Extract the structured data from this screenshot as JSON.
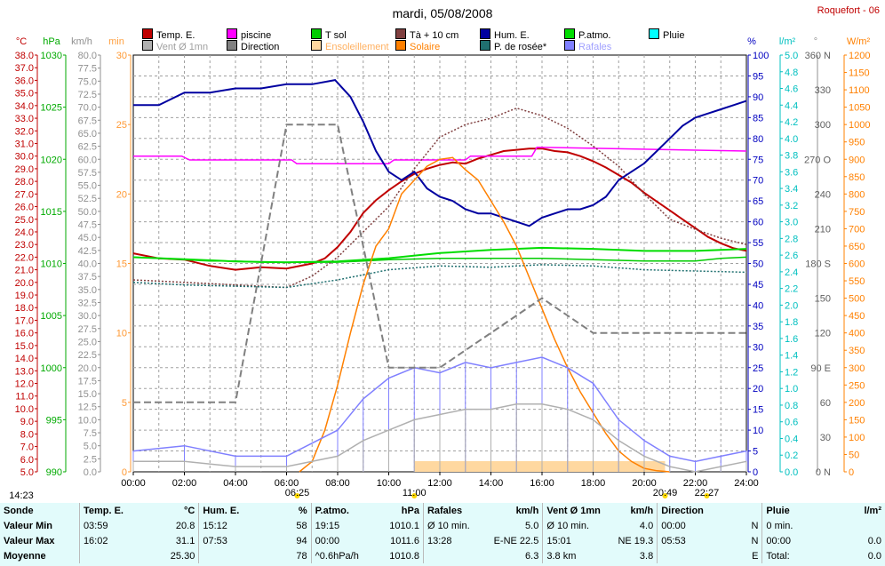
{
  "page": {
    "title": "mardi, 05/08/2008",
    "station": "Roquefort - 06"
  },
  "legend": [
    {
      "label": "Temp. E.",
      "color": "#c00000",
      "text_color": "#000000"
    },
    {
      "label": "piscine",
      "color": "#ff00ff",
      "text_color": "#000000"
    },
    {
      "label": "T sol",
      "color": "#00cc00",
      "text_color": "#000000"
    },
    {
      "label": "Tà + 10 cm",
      "color": "#804040",
      "text_color": "#000000"
    },
    {
      "label": "Hum. E.",
      "color": "#0000a0",
      "text_color": "#000000"
    },
    {
      "label": "P.atmo.",
      "color": "#00dd00",
      "text_color": "#000000"
    },
    {
      "label": "Pluie",
      "color": "#00ffff",
      "text_color": "#000000"
    },
    {
      "label": "Vent Ø 1mn",
      "color": "#b0b0b0",
      "text_color": "#a0a0a0"
    },
    {
      "label": "Direction",
      "color": "#808080",
      "text_color": "#000000"
    },
    {
      "label": "Ensoleillement",
      "color": "#ffd8a0",
      "text_color": "#ffb060"
    },
    {
      "label": "Solaire",
      "color": "#ff8000",
      "text_color": "#ff8000"
    },
    {
      "label": "P. de rosée*",
      "color": "#207070",
      "text_color": "#000000"
    },
    {
      "label": "Rafales",
      "color": "#8080ff",
      "text_color": "#a0a0ff"
    }
  ],
  "axis_units": {
    "temp": "°C",
    "press": "hPa",
    "wind": "km/h",
    "minutes": "min",
    "percent": "%",
    "rain": "l/m²",
    "direction": "°",
    "solar": "W/m²"
  },
  "sun_markers": {
    "dawn": "06:25",
    "sunrise": "11:00",
    "sunset": "20:49",
    "dusk": "22:27",
    "left": "14:23"
  },
  "chart_data": {
    "type": "line",
    "title": "mardi, 05/08/2008",
    "x_ticks": [
      "00:00",
      "02:00",
      "04:00",
      "06:00",
      "08:00",
      "10:00",
      "12:00",
      "14:00",
      "16:00",
      "18:00",
      "20:00",
      "22:00",
      "24:00"
    ],
    "xlim": [
      0,
      24
    ],
    "axes": {
      "temp_c": {
        "range": [
          5,
          38
        ],
        "step": 0.5,
        "label_step": 1,
        "color": "#c00000"
      },
      "pressure_hpa": {
        "range": [
          990,
          1030
        ],
        "ticks": [
          990,
          995,
          1000,
          1005,
          1010,
          1015,
          1020,
          1025,
          1030
        ],
        "color": "#00aa00"
      },
      "wind_kmh": {
        "range": [
          0,
          80
        ],
        "step": 2.5,
        "color": "#909090"
      },
      "sun_min": {
        "range": [
          0,
          30
        ],
        "ticks": [
          0,
          5,
          10,
          15,
          20,
          25,
          30
        ],
        "color": "#ff9933"
      },
      "humidity_pct": {
        "range": [
          0,
          100
        ],
        "step": 5,
        "color": "#0000c0"
      },
      "rain_lm2": {
        "range": [
          0,
          5
        ],
        "step": 0.2,
        "color": "#00c0c0"
      },
      "direction_deg": {
        "ticks": [
          0,
          30,
          60,
          90,
          120,
          150,
          180,
          210,
          240,
          270,
          300,
          330,
          360
        ],
        "compass": {
          "0": "N",
          "90": "E",
          "180": "S",
          "270": "O",
          "360": "N"
        },
        "color": "#909090"
      },
      "solar_wm2": {
        "range": [
          0,
          1200
        ],
        "step": 50,
        "color": "#ff8000"
      }
    },
    "series": [
      {
        "name": "Temp. E.",
        "axis": "temp_c",
        "color": "#c00000",
        "x": [
          0,
          1,
          2,
          3,
          4,
          5,
          6,
          7,
          7.5,
          8,
          8.5,
          9,
          9.5,
          10,
          10.5,
          11,
          11.5,
          12,
          12.5,
          13,
          13.5,
          14,
          14.5,
          15,
          15.5,
          16,
          16.5,
          17,
          17.5,
          18,
          18.5,
          19,
          19.5,
          20,
          20.5,
          21,
          21.5,
          22,
          22.5,
          23,
          23.5,
          24
        ],
        "y": [
          22.3,
          21.9,
          21.8,
          21.3,
          21.0,
          21.2,
          21.1,
          21.5,
          21.9,
          22.8,
          24.0,
          25.5,
          26.5,
          27.3,
          28.0,
          28.6,
          29.0,
          29.3,
          29.5,
          29.4,
          29.8,
          30.1,
          30.4,
          30.5,
          30.6,
          30.6,
          30.4,
          30.3,
          30.0,
          29.6,
          29.1,
          28.5,
          27.9,
          27.1,
          26.4,
          25.7,
          25.0,
          24.3,
          23.6,
          23.1,
          22.7,
          22.5
        ]
      },
      {
        "name": "piscine",
        "axis": "temp_c",
        "color": "#ff00ff",
        "x": [
          0,
          1.9,
          2.2,
          6.2,
          6.4,
          10,
          10.2,
          13,
          13.2,
          15.6,
          15.8,
          24
        ],
        "y": [
          30.0,
          30.0,
          29.7,
          29.7,
          29.4,
          29.4,
          29.7,
          29.7,
          30.0,
          30.0,
          30.7,
          30.4
        ]
      },
      {
        "name": "T sol",
        "axis": "temp_c",
        "color": "#00cc00",
        "x": [
          0,
          1,
          2,
          3,
          4,
          5,
          6,
          7,
          8,
          9,
          10,
          12,
          14,
          16,
          18,
          20,
          22,
          23,
          24
        ],
        "y": [
          22.0,
          21.9,
          21.8,
          21.7,
          21.7,
          21.6,
          21.6,
          21.6,
          21.6,
          21.7,
          21.8,
          21.9,
          21.9,
          21.9,
          21.8,
          21.7,
          21.7,
          21.9,
          22.0
        ]
      },
      {
        "name": "Tà + 10 cm",
        "axis": "temp_c",
        "color": "#804040",
        "x": [
          0,
          2,
          4,
          6,
          7,
          8,
          9,
          10,
          11,
          12,
          13,
          14,
          15,
          16,
          17,
          18,
          19,
          20,
          21,
          22,
          23,
          24
        ],
        "y": [
          20.2,
          20.0,
          19.8,
          19.6,
          20.5,
          22.0,
          24.0,
          26.0,
          29.0,
          31.5,
          32.5,
          33.0,
          33.8,
          33.2,
          32.2,
          30.8,
          29.2,
          27.0,
          25.0,
          24.2,
          23.5,
          23.0
        ]
      },
      {
        "name": "P. de rosée*",
        "axis": "temp_c",
        "color": "#207070",
        "x": [
          0,
          2,
          4,
          6,
          8,
          10,
          12,
          14,
          16,
          18,
          20,
          22,
          24
        ],
        "y": [
          20.0,
          19.8,
          19.7,
          19.6,
          20.2,
          21.0,
          21.3,
          21.2,
          21.4,
          21.3,
          21.0,
          20.9,
          20.8
        ]
      },
      {
        "name": "Hum. E.",
        "axis": "humidity_pct",
        "color": "#0000a0",
        "x": [
          0,
          1,
          2,
          3,
          4,
          5,
          6,
          7,
          7.9,
          8.5,
          9,
          9.5,
          10,
          10.5,
          11,
          11.5,
          12,
          12.5,
          13,
          13.5,
          14,
          14.5,
          15,
          15.5,
          16,
          16.5,
          17,
          17.5,
          18,
          18.5,
          19,
          19.5,
          20,
          20.5,
          21,
          21.5,
          22,
          22.5,
          23,
          23.5,
          24
        ],
        "y": [
          88,
          88,
          91,
          91,
          92,
          92,
          93,
          93,
          94,
          90,
          84,
          77,
          72,
          70,
          72,
          68,
          66,
          65,
          63,
          62,
          62,
          61,
          60,
          59,
          61,
          62,
          63,
          63,
          64,
          66,
          70,
          72,
          74,
          77,
          80,
          83,
          85,
          86,
          87,
          88,
          89
        ]
      },
      {
        "name": "P.atmo.",
        "axis": "pressure_hpa",
        "color": "#00dd00",
        "x": [
          0,
          2,
          4,
          6,
          8,
          10,
          12,
          14,
          16,
          18,
          20,
          22,
          24
        ],
        "y": [
          1010.6,
          1010.4,
          1010.2,
          1010.1,
          1010.2,
          1010.5,
          1011.0,
          1011.3,
          1011.5,
          1011.4,
          1011.2,
          1011.2,
          1011.4
        ]
      },
      {
        "name": "Solaire",
        "axis": "solar_wm2",
        "color": "#ff8000",
        "x": [
          6.5,
          7,
          7.5,
          8,
          8.5,
          9,
          9.5,
          10,
          10.5,
          11,
          11.5,
          12,
          12.5,
          13,
          13.5,
          14,
          14.5,
          15,
          15.5,
          16,
          16.5,
          17,
          17.5,
          18,
          18.5,
          19,
          19.5,
          20,
          20.5,
          21
        ],
        "y": [
          0,
          30,
          120,
          250,
          400,
          540,
          650,
          700,
          800,
          840,
          880,
          900,
          905,
          870,
          840,
          780,
          720,
          650,
          560,
          470,
          380,
          300,
          230,
          170,
          110,
          60,
          30,
          10,
          3,
          0
        ]
      },
      {
        "name": "Rafales",
        "axis": "wind_kmh",
        "color": "#8080ff",
        "x": [
          0,
          2,
          4,
          6,
          8,
          9,
          10,
          11,
          12,
          13,
          14,
          15,
          16,
          17,
          18,
          19,
          20,
          21,
          22,
          23,
          24
        ],
        "y": [
          4,
          5,
          3,
          3,
          8,
          14,
          18,
          20,
          19,
          21,
          20,
          21,
          22,
          20,
          17,
          10,
          6,
          3,
          2,
          3,
          4
        ]
      },
      {
        "name": "Vent Ø 1mn",
        "axis": "wind_kmh",
        "color": "#b0b0b0",
        "x": [
          0,
          2,
          4,
          6,
          8,
          9,
          10,
          11,
          12,
          13,
          14,
          15,
          16,
          17,
          18,
          19,
          20,
          21,
          22,
          23,
          24
        ],
        "y": [
          2,
          2,
          1,
          1,
          3,
          6,
          8,
          10,
          11,
          12,
          12,
          13,
          13,
          12,
          10,
          6,
          3,
          1,
          0,
          1,
          2
        ]
      },
      {
        "name": "Direction",
        "axis": "direction_deg",
        "color": "#808080",
        "x": [
          0,
          2,
          4,
          6,
          8,
          10,
          12,
          14,
          16,
          18,
          20,
          22,
          24
        ],
        "y": [
          60,
          60,
          60,
          300,
          300,
          90,
          90,
          120,
          150,
          120,
          120,
          120,
          120
        ]
      }
    ]
  },
  "stats": {
    "headers": [
      {
        "label": "Sonde",
        "unit": ""
      },
      {
        "label": "Temp. E.",
        "unit": "°C"
      },
      {
        "label": "Hum. E.",
        "unit": "%"
      },
      {
        "label": "P.atmo.",
        "unit": "hPa"
      },
      {
        "label": "Rafales",
        "unit": "km/h"
      },
      {
        "label": "Vent Ø 1mn",
        "unit": "km/h"
      },
      {
        "label": "Direction",
        "unit": ""
      },
      {
        "label": "Pluie",
        "unit": "l/m²"
      }
    ],
    "rows": [
      {
        "label": "Valeur Min",
        "cells": [
          [
            "03:59",
            "20.8"
          ],
          [
            "15:12",
            "58"
          ],
          [
            "19:15",
            "1010.1"
          ],
          [
            "Ø 10 min.",
            "5.0"
          ],
          [
            "Ø 10 min.",
            "4.0"
          ],
          [
            "00:00",
            "N"
          ],
          [
            "0 min.",
            ""
          ]
        ]
      },
      {
        "label": "Valeur Max",
        "cells": [
          [
            "16:02",
            "31.1"
          ],
          [
            "07:53",
            "94"
          ],
          [
            "00:00",
            "1011.6"
          ],
          [
            "13:28",
            "E-NE 22.5"
          ],
          [
            "15:01",
            "NE 19.3"
          ],
          [
            "05:53",
            "N"
          ],
          [
            "00:00",
            "0.0"
          ]
        ]
      },
      {
        "label": "Moyenne",
        "cells": [
          [
            "",
            "25.30"
          ],
          [
            "",
            "78"
          ],
          [
            "^0.6hPa/h",
            "1010.8"
          ],
          [
            "",
            "6.3"
          ],
          [
            "3.8 km",
            "3.8"
          ],
          [
            "",
            "E"
          ],
          [
            "Total:",
            "0.0"
          ]
        ]
      }
    ]
  }
}
